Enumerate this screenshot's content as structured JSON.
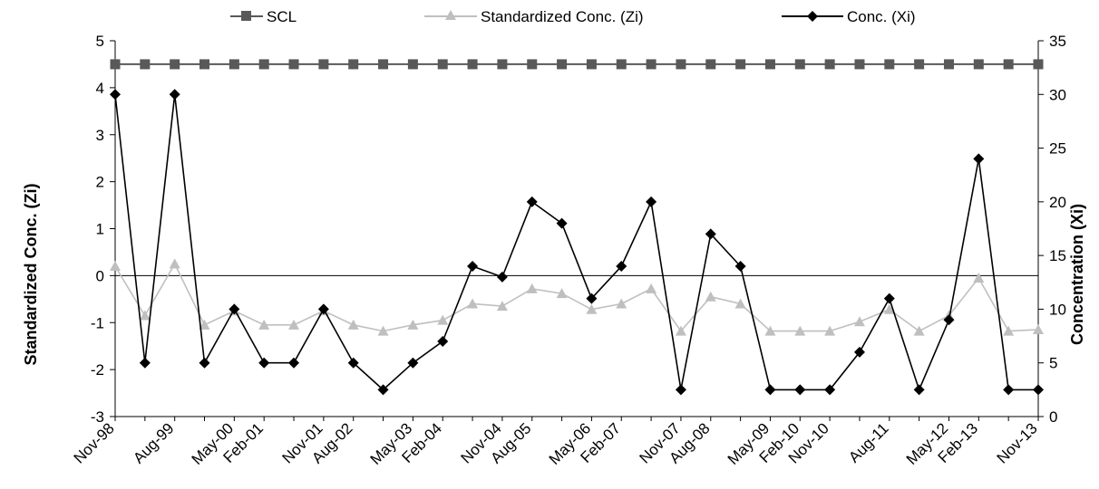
{
  "chart_data": {
    "type": "line",
    "x": [
      "Nov-98",
      "Feb-99",
      "Aug-99",
      "Feb-00",
      "May-00",
      "Feb-01",
      "Aug-01",
      "Nov-01",
      "Aug-02",
      "Feb-03",
      "May-03",
      "Feb-04",
      "Aug-04",
      "Nov-04",
      "Aug-05",
      "Feb-06",
      "May-06",
      "Feb-07",
      "Aug-07",
      "Nov-07",
      "Aug-08",
      "Feb-09",
      "May-09",
      "Feb-10",
      "Nov-10",
      "Feb-11",
      "Aug-11",
      "Nov-11",
      "May-12",
      "Feb-13",
      "Aug-13",
      "Nov-13"
    ],
    "x_tick_labels": [
      "Nov-98",
      "Aug-99",
      "May-00",
      "Feb-01",
      "Nov-01",
      "Aug-02",
      "May-03",
      "Feb-04",
      "Nov-04",
      "Aug-05",
      "May-06",
      "Feb-07",
      "Nov-07",
      "Aug-08",
      "May-09",
      "Feb-10",
      "Nov-10",
      "Aug-11",
      "May-12",
      "Feb-13",
      "Nov-13"
    ],
    "left_axis": {
      "label": "Standardized Conc. (Zi)",
      "ylim": [
        -3,
        5
      ],
      "ticks": [
        "5",
        "4",
        "3",
        "2",
        "1",
        "0",
        "-1",
        "-2",
        "-3"
      ]
    },
    "right_axis": {
      "label": "Concentration (Xi)",
      "ylim": [
        0,
        35
      ],
      "ticks": [
        "35",
        "30",
        "25",
        "20",
        "15",
        "10",
        "5",
        "0"
      ]
    },
    "series": [
      {
        "name": "SCL",
        "axis": "left",
        "color": "#595959",
        "marker": "square",
        "values": [
          4.5,
          4.5,
          4.5,
          4.5,
          4.5,
          4.5,
          4.5,
          4.5,
          4.5,
          4.5,
          4.5,
          4.5,
          4.5,
          4.5,
          4.5,
          4.5,
          4.5,
          4.5,
          4.5,
          4.5,
          4.5,
          4.5,
          4.5,
          4.5,
          4.5,
          4.5,
          4.5,
          4.5,
          4.5,
          4.5,
          4.5,
          4.5
        ]
      },
      {
        "name": "Standardized Conc. (Zi)",
        "axis": "left",
        "color": "#bfbfbf",
        "marker": "triangle",
        "values": [
          0.2,
          -0.85,
          0.25,
          -1.05,
          -0.75,
          -1.05,
          -1.05,
          -0.75,
          -1.05,
          -1.18,
          -1.05,
          -0.95,
          -0.6,
          -0.65,
          -0.28,
          -0.38,
          -0.72,
          -0.6,
          -0.28,
          -1.18,
          -0.45,
          -0.6,
          -1.18,
          -1.18,
          -1.18,
          -0.98,
          -0.72,
          -1.18,
          -0.85,
          -0.05,
          -1.18,
          -1.15
        ]
      },
      {
        "name": "Conc. (Xi)",
        "axis": "right",
        "color": "#000000",
        "marker": "diamond",
        "values": [
          30,
          5,
          30,
          5,
          10,
          5,
          5,
          10,
          5,
          2.5,
          5,
          7,
          14,
          13,
          20,
          18,
          11,
          14,
          20,
          2.5,
          17,
          14,
          2.5,
          2.5,
          2.5,
          6,
          11,
          2.5,
          9,
          24,
          2.5,
          2.5
        ]
      }
    ],
    "zero_line": true,
    "grid": false,
    "legend": "top-center"
  }
}
